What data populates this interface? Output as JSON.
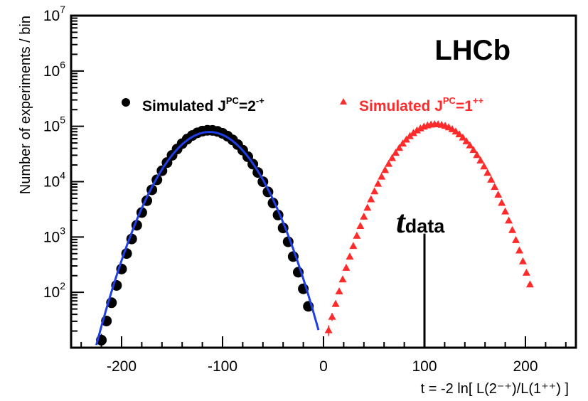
{
  "chart_data": {
    "type": "scatter",
    "experiment_label": "LHCb",
    "xlabel": "t = -2 ln[ L(2⁻⁺)/L(1⁺⁺) ]",
    "ylabel": "Number of experiments / bin",
    "xlim": [
      -250,
      250
    ],
    "ylim": [
      10,
      10000000
    ],
    "yscale": "log",
    "x_ticks": [
      -200,
      -100,
      0,
      100,
      200
    ],
    "x_tick_labels": [
      "-200",
      "-100",
      "0",
      "100",
      "200"
    ],
    "y_ticks": [
      100,
      1000,
      10000,
      100000,
      1000000,
      10000000
    ],
    "y_tick_labels": [
      {
        "base": "10",
        "exp": "2"
      },
      {
        "base": "10",
        "exp": "3"
      },
      {
        "base": "10",
        "exp": "4"
      },
      {
        "base": "10",
        "exp": "5"
      },
      {
        "base": "10",
        "exp": "6"
      },
      {
        "base": "10",
        "exp": "7"
      }
    ],
    "legend": [
      {
        "marker": "circle",
        "color": "#000000",
        "text": "Simulated J",
        "sup": "PC",
        "tail": "=2",
        "tail_sup": "-+"
      },
      {
        "marker": "triangle",
        "color": "#ff2a2a",
        "text": "Simulated J",
        "sup": "PC",
        "tail": "=1",
        "tail_sup": "++"
      }
    ],
    "series": [
      {
        "marker": "circle",
        "color": "#000000",
        "gaussian": {
          "mean": -113,
          "sigma": 25.6,
          "peak": 85000
        },
        "x_range": [
          -235,
          -15
        ],
        "bin_width": 5
      },
      {
        "marker": "triangle",
        "color": "#ff2a2a",
        "gaussian": {
          "mean": 111,
          "sigma": 25.6,
          "peak": 110000
        },
        "x_range": [
          5,
          205
        ],
        "bin_width": 3.5
      },
      {
        "type": "line",
        "color": "#1f3fe6",
        "gaussian": {
          "mean": -113,
          "sigma": 26.6,
          "peak": 79000
        },
        "x_range": [
          -225,
          -5
        ]
      }
    ],
    "annotation": {
      "label": "t",
      "subscript": "data",
      "x": 100,
      "y_top": 1150
    }
  }
}
